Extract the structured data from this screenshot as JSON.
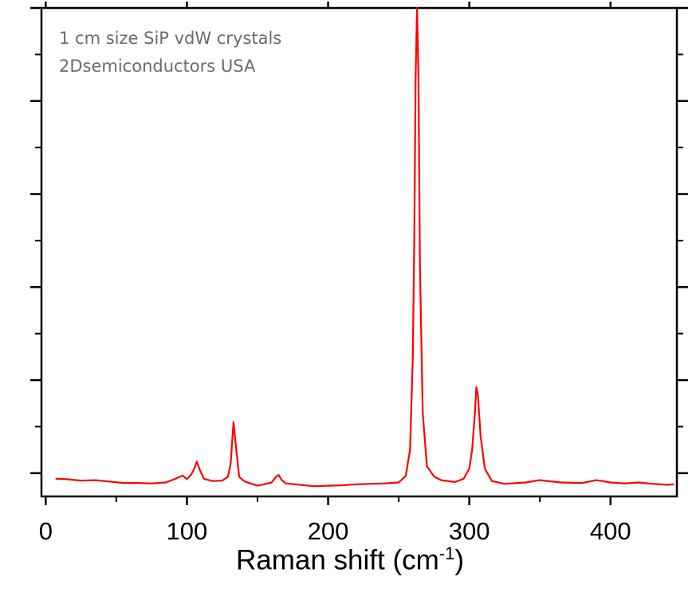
{
  "chart_data": {
    "type": "line",
    "annotation": [
      "1 cm size SiP vdW crystals",
      "2Dsemiconductors USA"
    ],
    "xlabel": {
      "text": "Raman shift (cm",
      "superscript": "-1",
      "suffix": ")"
    },
    "ylabel": "",
    "xlim": [
      -3,
      447
    ],
    "ylim": [
      -0.05,
      1.0
    ],
    "x_ticks": [
      0,
      100,
      200,
      300,
      400
    ],
    "x_tick_labels": [
      "0",
      "100",
      "200",
      "300",
      "400"
    ],
    "y_major_ticks": [
      0,
      0.2,
      0.4,
      0.6,
      0.8,
      1.0
    ],
    "y_tick_labels": [],
    "grid": false,
    "line_color": "#ff0000",
    "series": [
      {
        "x": [
          7,
          15,
          25,
          35,
          45,
          55,
          65,
          75,
          85,
          92,
          97,
          100,
          103,
          105,
          107,
          109,
          112,
          118,
          125,
          129,
          131,
          133,
          135,
          137,
          141,
          150,
          160,
          163,
          165,
          167,
          170,
          180,
          190,
          200,
          210,
          220,
          230,
          240,
          250,
          255,
          258,
          260,
          261,
          262,
          263,
          264,
          265,
          267,
          270,
          275,
          280,
          290,
          296,
          300,
          302,
          304,
          305,
          306,
          308,
          311,
          316,
          325,
          340,
          350,
          365,
          380,
          390,
          400,
          410,
          420,
          430,
          440,
          445
        ],
        "y": [
          -0.012,
          -0.013,
          -0.016,
          -0.015,
          -0.018,
          -0.021,
          -0.021,
          -0.022,
          -0.02,
          -0.012,
          -0.005,
          -0.013,
          -0.003,
          0.008,
          0.025,
          0.008,
          -0.012,
          -0.017,
          -0.016,
          -0.008,
          0.02,
          0.11,
          0.05,
          -0.008,
          -0.018,
          -0.027,
          -0.02,
          -0.008,
          -0.004,
          -0.014,
          -0.022,
          -0.025,
          -0.028,
          -0.027,
          -0.026,
          -0.024,
          -0.023,
          -0.022,
          -0.02,
          -0.006,
          0.05,
          0.25,
          0.5,
          0.85,
          1.0,
          0.85,
          0.45,
          0.13,
          0.015,
          -0.007,
          -0.015,
          -0.019,
          -0.012,
          0.01,
          0.05,
          0.13,
          0.185,
          0.17,
          0.08,
          0.01,
          -0.017,
          -0.023,
          -0.02,
          -0.015,
          -0.02,
          -0.021,
          -0.015,
          -0.02,
          -0.022,
          -0.02,
          -0.023,
          -0.025,
          -0.024
        ]
      }
    ]
  }
}
